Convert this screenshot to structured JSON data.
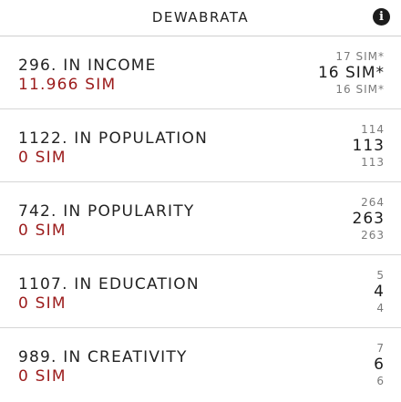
{
  "header": {
    "title": "DEWABRATA",
    "info_icon": "info-icon"
  },
  "rows": [
    {
      "rank": "296. IN INCOME",
      "value": "11.966 SIM",
      "prev": "17 SIM*",
      "current": "16 SIM*",
      "next": "16 SIM*"
    },
    {
      "rank": "1122. IN POPULATION",
      "value": "0 SIM",
      "prev": "114",
      "current": "113",
      "next": "113"
    },
    {
      "rank": "742. IN POPULARITY",
      "value": "0 SIM",
      "prev": "264",
      "current": "263",
      "next": "263"
    },
    {
      "rank": "1107. IN EDUCATION",
      "value": "0 SIM",
      "prev": "5",
      "current": "4",
      "next": "4"
    },
    {
      "rank": "989. IN CREATIVITY",
      "value": "0 SIM",
      "prev": "7",
      "current": "6",
      "next": "6"
    }
  ],
  "colors": {
    "value_red": "#9b1b1b",
    "divider": "#d6d6d6"
  }
}
